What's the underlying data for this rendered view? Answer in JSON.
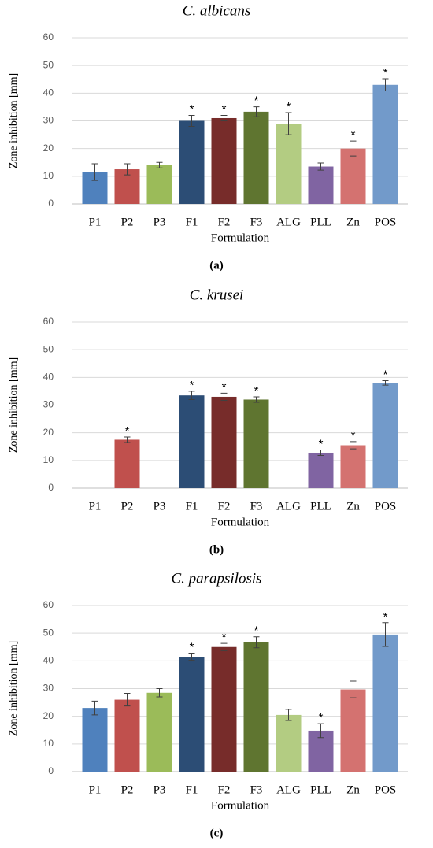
{
  "chart_data": [
    {
      "type": "bar",
      "title": "C. albicans",
      "caption": "(a)",
      "x_label": "Formulation",
      "y_label": "Zone inhibition [mm]",
      "categories": [
        "P1",
        "P2",
        "P3",
        "F1",
        "F2",
        "F3",
        "ALG",
        "PLL",
        "Zn",
        "POS"
      ],
      "values": [
        11.5,
        12.5,
        14,
        30,
        31,
        33.3,
        29,
        13.5,
        20,
        43
      ],
      "errors": [
        3,
        2,
        1,
        2,
        1,
        1.8,
        4,
        1.3,
        2.7,
        2.2
      ],
      "annotations": [
        null,
        null,
        null,
        "*",
        "*",
        "*",
        "*",
        null,
        "*",
        "*"
      ],
      "colors": [
        "#4f81bd",
        "#c0504d",
        "#9bbb59",
        "#2c4d75",
        "#772c2a",
        "#5f7530",
        "#b3cc82",
        "#8064a2",
        "#d47270",
        "#729aca"
      ],
      "ylim": [
        0,
        60
      ],
      "yticks": [
        0,
        10,
        20,
        30,
        40,
        50,
        60
      ],
      "grid": true
    },
    {
      "type": "bar",
      "title": "C. krusei",
      "caption": "(b)",
      "x_label": "Formulation",
      "y_label": "Zone inhibition [mm]",
      "categories": [
        "P1",
        "P2",
        "P3",
        "F1",
        "F2",
        "F3",
        "ALG",
        "PLL",
        "Zn",
        "POS"
      ],
      "values": [
        null,
        17.5,
        null,
        33.5,
        33,
        32,
        null,
        12.8,
        15.5,
        38
      ],
      "errors": [
        null,
        1,
        null,
        1.5,
        1.3,
        1,
        null,
        1,
        1.3,
        0.8
      ],
      "annotations": [
        null,
        "*",
        null,
        "*",
        "*",
        "*",
        null,
        "*",
        "*",
        "*"
      ],
      "colors": [
        "#4f81bd",
        "#c0504d",
        "#9bbb59",
        "#2c4d75",
        "#772c2a",
        "#5f7530",
        "#b3cc82",
        "#8064a2",
        "#d47270",
        "#729aca"
      ],
      "ylim": [
        0,
        60
      ],
      "yticks": [
        0,
        10,
        20,
        30,
        40,
        50,
        60
      ],
      "grid": true
    },
    {
      "type": "bar",
      "title": "C. parapsilosis",
      "caption": "(c)",
      "x_label": "Formulation",
      "y_label": "Zone inhibition [mm]",
      "categories": [
        "P1",
        "P2",
        "P3",
        "F1",
        "F2",
        "F3",
        "ALG",
        "PLL",
        "Zn",
        "POS"
      ],
      "values": [
        23,
        26,
        28.5,
        41.5,
        45,
        46.7,
        20.5,
        14.8,
        29.7,
        49.5
      ],
      "errors": [
        2.5,
        2.3,
        1.5,
        1.3,
        1.3,
        2,
        2,
        2.5,
        3,
        4.3
      ],
      "annotations": [
        null,
        null,
        null,
        "*",
        "*",
        "*",
        null,
        "*",
        null,
        "*"
      ],
      "colors": [
        "#4f81bd",
        "#c0504d",
        "#9bbb59",
        "#2c4d75",
        "#772c2a",
        "#5f7530",
        "#b3cc82",
        "#8064a2",
        "#d47270",
        "#729aca"
      ],
      "ylim": [
        0,
        60
      ],
      "yticks": [
        0,
        10,
        20,
        30,
        40,
        50,
        60
      ],
      "grid": true
    }
  ]
}
